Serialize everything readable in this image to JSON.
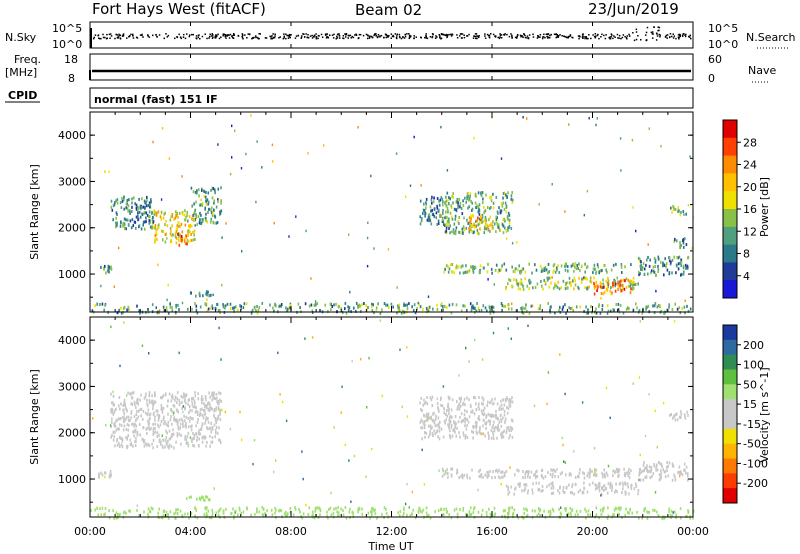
{
  "header": {
    "radar": "Fort Hays West (fitACF)",
    "beam": "Beam 02",
    "date": "23/Jun/2019"
  },
  "summary_panels": {
    "nsky_label": "N.Sky",
    "nsky_ticks": [
      "10^5",
      "10^0"
    ],
    "nsearch_label": "N.Search",
    "nsearch_ticks": [
      "10^5",
      "10^0"
    ],
    "freq_label": "Freq.",
    "freq_unit": "[MHz]",
    "freq_ticks": [
      "18",
      "8"
    ],
    "nave_label": "Nave",
    "nave_ticks": [
      "60",
      "0"
    ],
    "cpid_label": "CPID",
    "cpid_text": "normal (fast) 151 IF"
  },
  "chart_data": [
    {
      "type": "heatmap",
      "name": "power",
      "ylabel": "Slant Range [km]",
      "yticks": [
        "4000",
        "3000",
        "2000",
        "1000"
      ],
      "ylim": [
        180,
        4500
      ],
      "xlim": [
        0,
        24
      ],
      "colorbar": {
        "label": "Power [dB]",
        "ticks": [
          "28",
          "24",
          "20",
          "16",
          "12",
          "8",
          "4"
        ],
        "colors": [
          "#e00000",
          "#ff4000",
          "#ff8c00",
          "#ffc000",
          "#f0e000",
          "#88c048",
          "#50a080",
          "#2a7a8a",
          "#203c98",
          "#1818d8"
        ]
      },
      "regions": [
        {
          "t": [
            0.3,
            0.9
          ],
          "r": [
            1050,
            1200
          ],
          "v": 11
        },
        {
          "t": [
            0.8,
            2.5
          ],
          "r": [
            2000,
            2700
          ],
          "v": 10
        },
        {
          "t": [
            2.5,
            4.2
          ],
          "r": [
            1700,
            2400
          ],
          "v": 18
        },
        {
          "t": [
            3.4,
            3.9
          ],
          "r": [
            1600,
            1900
          ],
          "v": 24
        },
        {
          "t": [
            4.0,
            5.2
          ],
          "r": [
            2100,
            2900
          ],
          "v": 12
        },
        {
          "t": [
            3.8,
            4.8
          ],
          "r": [
            550,
            650
          ],
          "v": 10
        },
        {
          "t": [
            13.1,
            14.0
          ],
          "r": [
            2100,
            2700
          ],
          "v": 9
        },
        {
          "t": [
            14.0,
            16.8
          ],
          "r": [
            1900,
            2800
          ],
          "v": 12
        },
        {
          "t": [
            15.0,
            16.0
          ],
          "r": [
            2000,
            2300
          ],
          "v": 20
        },
        {
          "t": [
            14.0,
            21.5
          ],
          "r": [
            1050,
            1250
          ],
          "v": 13
        },
        {
          "t": [
            16.5,
            21.8
          ],
          "r": [
            700,
            950
          ],
          "v": 15
        },
        {
          "t": [
            20.0,
            21.5
          ],
          "r": [
            600,
            900
          ],
          "v": 24
        },
        {
          "t": [
            21.8,
            23.8
          ],
          "r": [
            1000,
            1400
          ],
          "v": 10
        },
        {
          "t": [
            23.2,
            23.9
          ],
          "r": [
            1600,
            1800
          ],
          "v": 11
        },
        {
          "t": [
            23.0,
            23.8
          ],
          "r": [
            2300,
            2500
          ],
          "v": 13
        },
        {
          "t": [
            0.0,
            24.0
          ],
          "r": [
            180,
            400
          ],
          "v": 12
        }
      ]
    },
    {
      "type": "heatmap",
      "name": "velocity",
      "ylabel": "Slant Range [km]",
      "yticks": [
        "4000",
        "3000",
        "2000",
        "1000"
      ],
      "ylim": [
        180,
        4500
      ],
      "xlim": [
        0,
        24
      ],
      "colorbar": {
        "label": "Velocity [m s^-1]",
        "ticks": [
          "200",
          "100",
          "50",
          "15",
          "-15",
          "-50",
          "-100",
          "-200"
        ],
        "colors": [
          "#1a3aa0",
          "#2e6aa0",
          "#2f8c55",
          "#5fc040",
          "#a0e070",
          "#c8c8c8",
          "#c8c8c8",
          "#f0e000",
          "#ffb400",
          "#ff7800",
          "#ff3c00",
          "#e00000"
        ]
      },
      "regions": [
        {
          "t": [
            0.3,
            0.9
          ],
          "r": [
            1050,
            1200
          ],
          "v": 0
        },
        {
          "t": [
            0.8,
            5.2
          ],
          "r": [
            1700,
            2900
          ],
          "v": 0
        },
        {
          "t": [
            3.8,
            4.8
          ],
          "r": [
            550,
            650
          ],
          "v": 30
        },
        {
          "t": [
            13.1,
            16.8
          ],
          "r": [
            1900,
            2800
          ],
          "v": 0
        },
        {
          "t": [
            14.0,
            21.5
          ],
          "r": [
            1050,
            1250
          ],
          "v": 0
        },
        {
          "t": [
            16.5,
            21.8
          ],
          "r": [
            700,
            950
          ],
          "v": 0
        },
        {
          "t": [
            21.8,
            23.8
          ],
          "r": [
            1000,
            1400
          ],
          "v": 0
        },
        {
          "t": [
            23.0,
            23.8
          ],
          "r": [
            2300,
            2500
          ],
          "v": 0
        },
        {
          "t": [
            0.0,
            24.0
          ],
          "r": [
            180,
            420
          ],
          "v": 40
        }
      ]
    }
  ],
  "xaxis": {
    "label": "Time UT",
    "ticks": [
      "00:00",
      "04:00",
      "08:00",
      "12:00",
      "16:00",
      "20:00",
      "00:00"
    ]
  }
}
